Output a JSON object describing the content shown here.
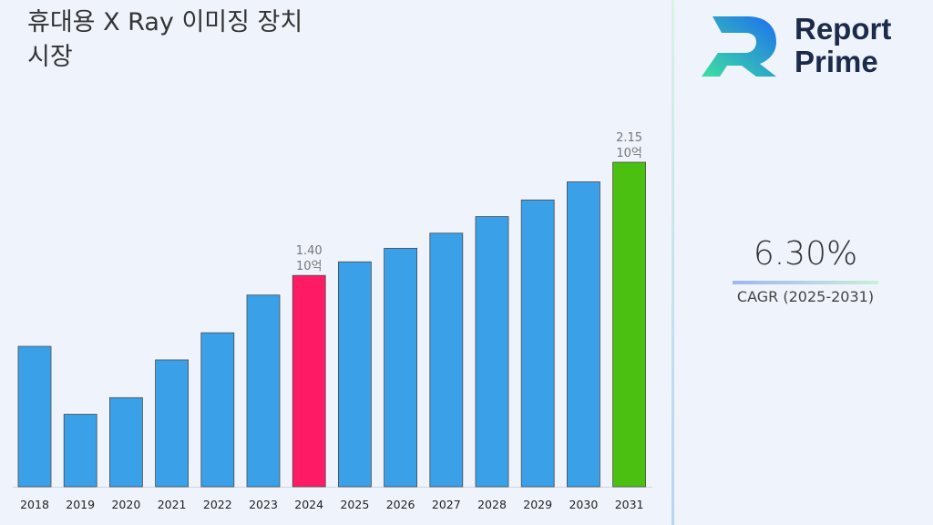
{
  "title": {
    "line1": "휴대용 X Ray 이미징 장치",
    "line2": "시장"
  },
  "brand": {
    "line1": "Report",
    "line2": "Prime"
  },
  "cagr": {
    "value": "6.30%",
    "label": "CAGR (2025-2031)"
  },
  "colors": {
    "bar": "#3aa0e8",
    "highlight_current": "#ff1a66",
    "highlight_final": "#4cc010",
    "background": "#eef3fc"
  },
  "chart_data": {
    "type": "bar",
    "categories": [
      "2018",
      "2019",
      "2020",
      "2021",
      "2022",
      "2023",
      "2024",
      "2025",
      "2026",
      "2027",
      "2028",
      "2029",
      "2030",
      "2031"
    ],
    "values": [
      0.93,
      0.48,
      0.59,
      0.84,
      1.02,
      1.27,
      1.4,
      1.49,
      1.58,
      1.68,
      1.79,
      1.9,
      2.02,
      2.15
    ],
    "annotations": [
      {
        "index": 6,
        "value": "1.40",
        "unit": "10억"
      },
      {
        "index": 13,
        "value": "2.15",
        "unit": "10억"
      }
    ],
    "highlight": {
      "6": "current",
      "13": "final"
    },
    "ylim": [
      0,
      2.15
    ],
    "grid": false
  }
}
